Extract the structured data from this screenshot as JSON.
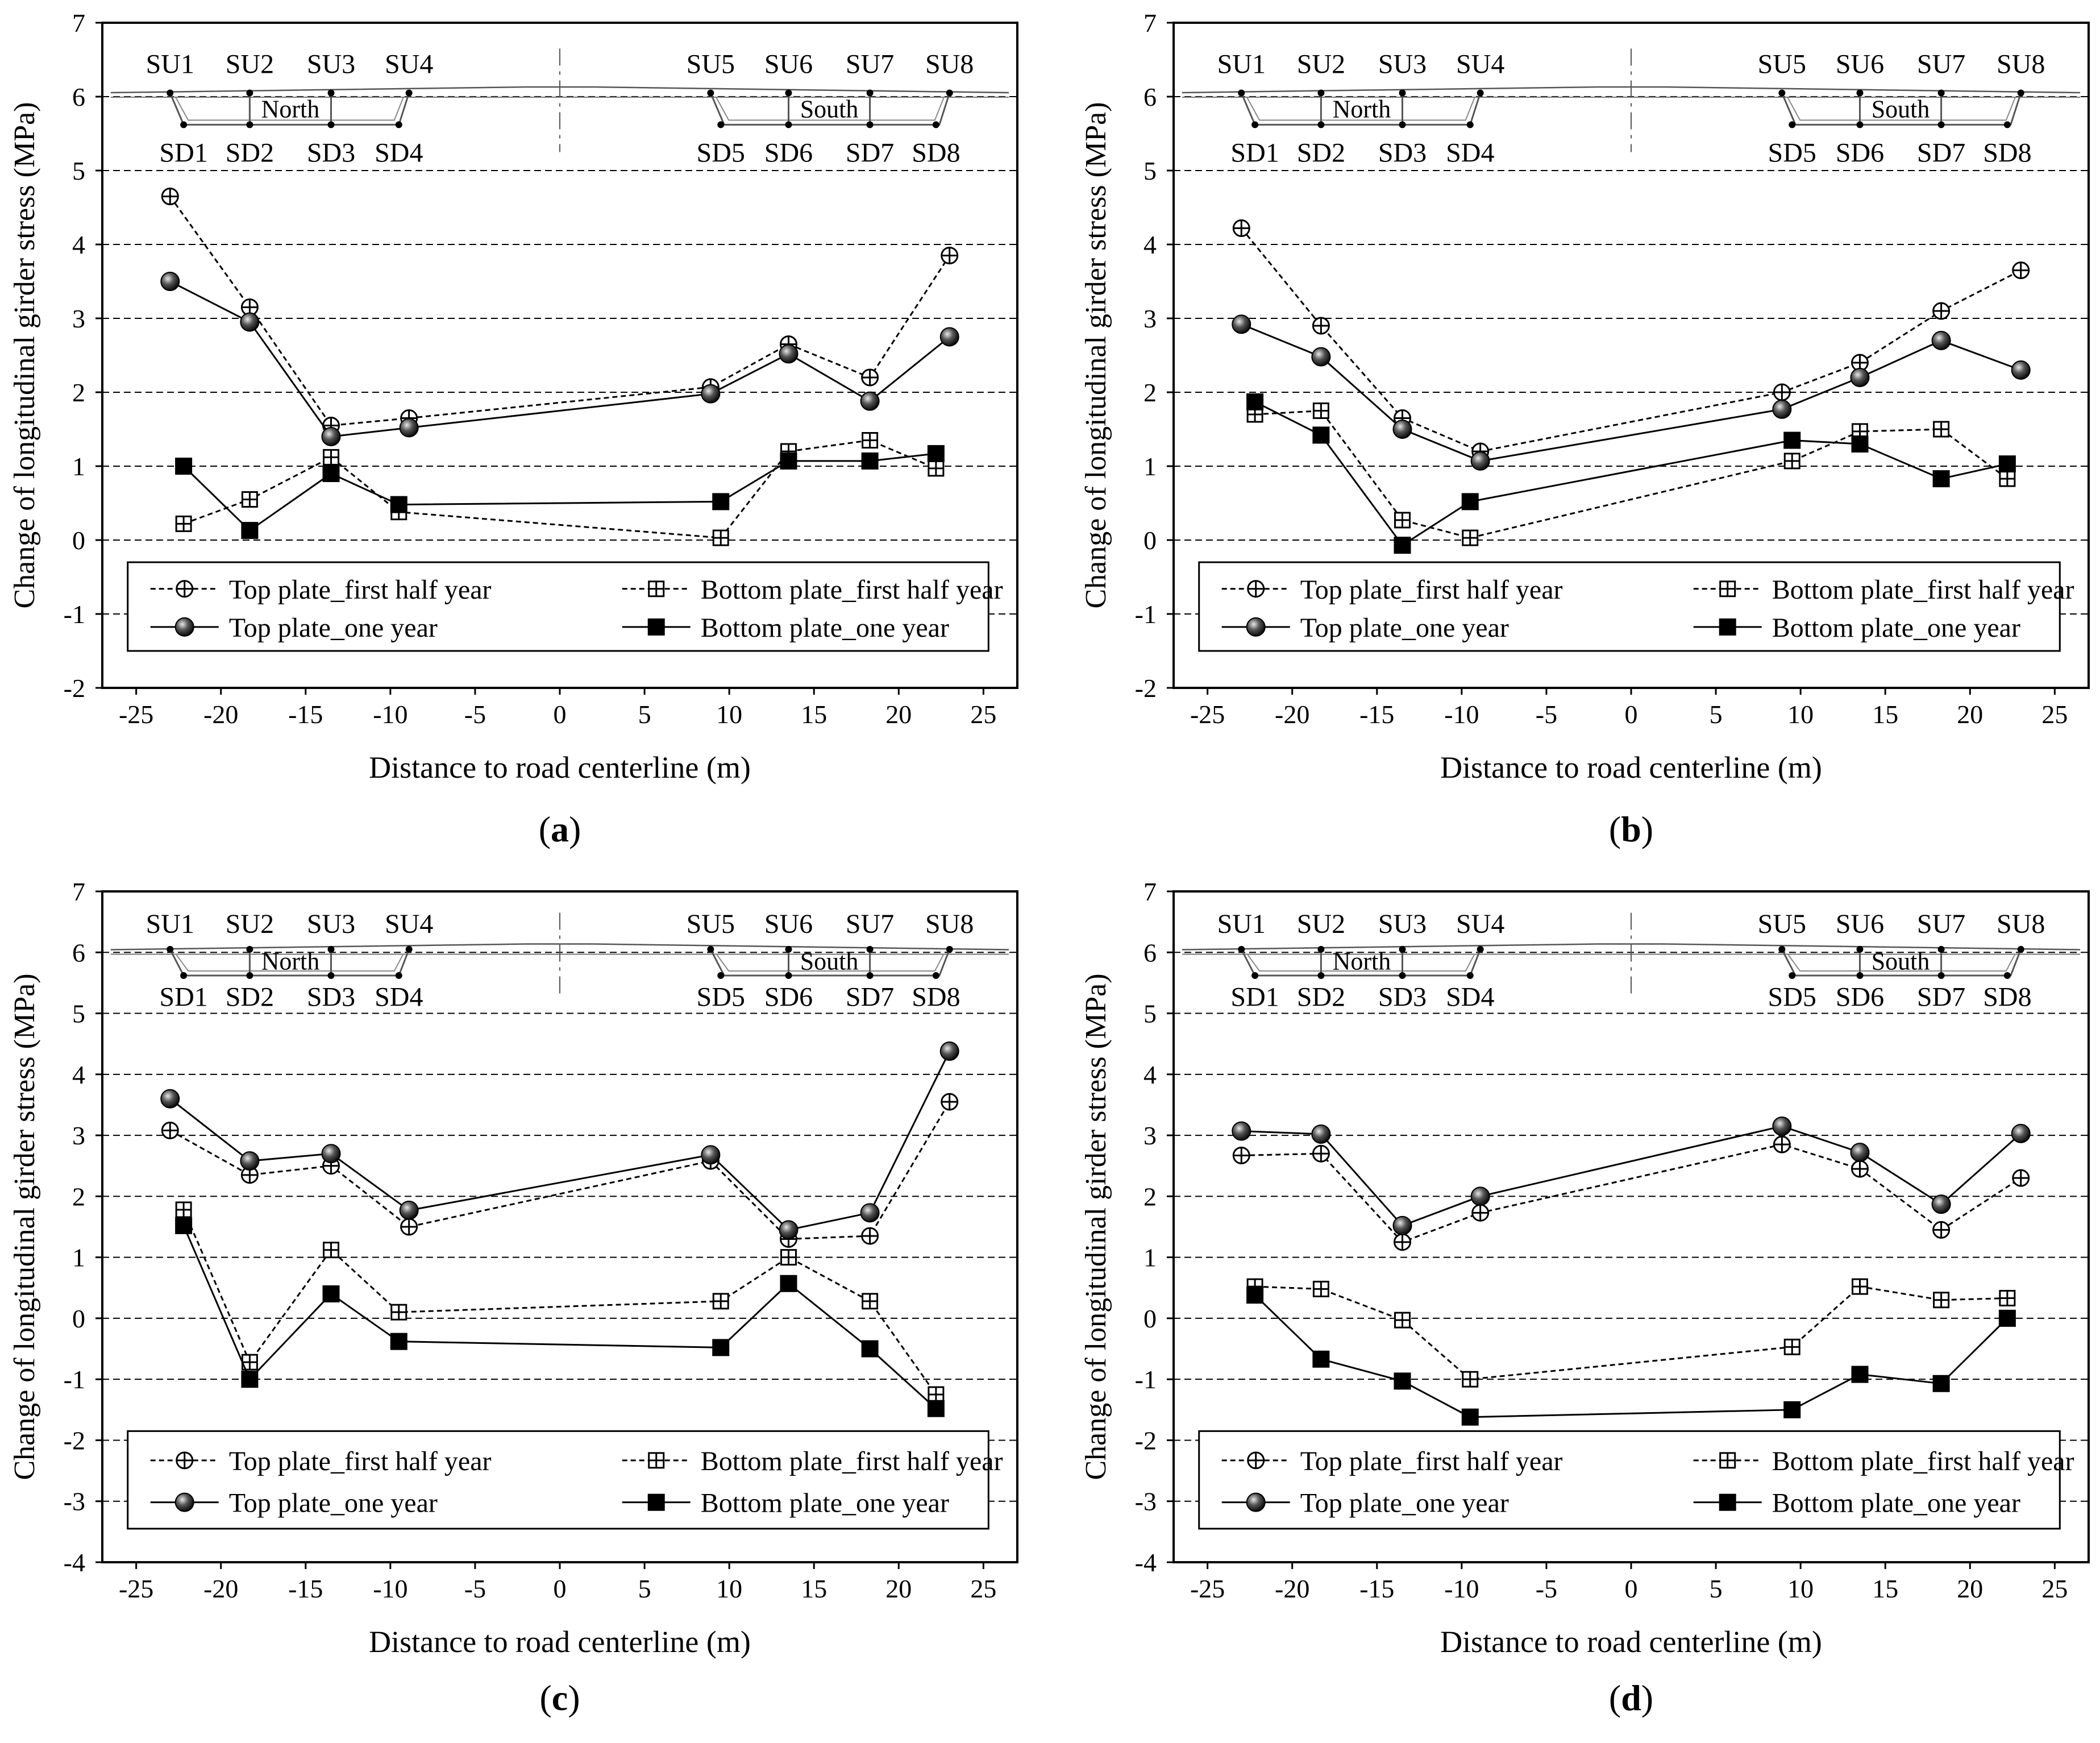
{
  "chart_data": [
    {
      "type": "line",
      "panel_label": "(a)",
      "xlabel": "Distance to road centerline (m)",
      "ylabel": "Change of longitudinal girder stress (MPa)",
      "xlim": [
        -27,
        27
      ],
      "ylim": [
        -2,
        7
      ],
      "xticks": [
        -25,
        -20,
        -15,
        -10,
        -5,
        0,
        5,
        10,
        15,
        20,
        25
      ],
      "yticks": [
        -2,
        -1,
        0,
        1,
        2,
        3,
        4,
        5,
        6,
        7
      ],
      "series": [
        {
          "name": "Top plate_first half year",
          "marker": "circle-cross",
          "style": "dashed",
          "x": [
            -23,
            -18.3,
            -13.5,
            -8.9,
            8.9,
            13.5,
            18.3,
            23
          ],
          "y": [
            4.65,
            3.15,
            1.55,
            1.65,
            2.07,
            2.65,
            2.2,
            3.85
          ]
        },
        {
          "name": "Bottom plate_first half year",
          "marker": "square-cross",
          "style": "dashed",
          "x": [
            -22.2,
            -18.3,
            -13.5,
            -9.5,
            9.5,
            13.5,
            18.3,
            22.2
          ],
          "y": [
            0.22,
            0.55,
            1.12,
            0.38,
            0.03,
            1.2,
            1.35,
            0.97
          ]
        },
        {
          "name": "Top plate_one year",
          "marker": "ball",
          "style": "solid",
          "x": [
            -23,
            -18.3,
            -13.5,
            -8.9,
            8.9,
            13.5,
            18.3,
            23
          ],
          "y": [
            3.5,
            2.95,
            1.4,
            1.52,
            1.98,
            2.52,
            1.88,
            2.75
          ]
        },
        {
          "name": "Bottom plate_one year",
          "marker": "filled-square",
          "style": "solid",
          "x": [
            -22.2,
            -18.3,
            -13.5,
            -9.5,
            9.5,
            13.5,
            18.3,
            22.2
          ],
          "y": [
            1.0,
            0.13,
            0.9,
            0.48,
            0.52,
            1.07,
            1.07,
            1.17
          ]
        }
      ]
    },
    {
      "type": "line",
      "panel_label": "(b)",
      "xlabel": "Distance to road centerline (m)",
      "ylabel": "Change of longitudinal girder stress (MPa)",
      "xlim": [
        -27,
        27
      ],
      "ylim": [
        -2,
        7
      ],
      "xticks": [
        -25,
        -20,
        -15,
        -10,
        -5,
        0,
        5,
        10,
        15,
        20,
        25
      ],
      "yticks": [
        -2,
        -1,
        0,
        1,
        2,
        3,
        4,
        5,
        6,
        7
      ],
      "series": [
        {
          "name": "Top plate_first half year",
          "marker": "circle-cross",
          "style": "dashed",
          "x": [
            -23,
            -18.3,
            -13.5,
            -8.9,
            8.9,
            13.5,
            18.3,
            23
          ],
          "y": [
            4.22,
            2.9,
            1.65,
            1.2,
            2.0,
            2.4,
            3.1,
            3.65
          ]
        },
        {
          "name": "Bottom plate_first half year",
          "marker": "square-cross",
          "style": "dashed",
          "x": [
            -22.2,
            -18.3,
            -13.5,
            -9.5,
            9.5,
            13.5,
            18.3,
            22.2
          ],
          "y": [
            1.7,
            1.75,
            0.27,
            0.03,
            1.07,
            1.47,
            1.5,
            0.83
          ]
        },
        {
          "name": "Top plate_one year",
          "marker": "ball",
          "style": "solid",
          "x": [
            -23,
            -18.3,
            -13.5,
            -8.9,
            8.9,
            13.5,
            18.3,
            23
          ],
          "y": [
            2.92,
            2.48,
            1.5,
            1.07,
            1.77,
            2.2,
            2.7,
            2.3
          ]
        },
        {
          "name": "Bottom plate_one year",
          "marker": "filled-square",
          "style": "solid",
          "x": [
            -22.2,
            -18.3,
            -13.5,
            -9.5,
            9.5,
            13.5,
            18.3,
            22.2
          ],
          "y": [
            1.87,
            1.42,
            -0.07,
            0.52,
            1.35,
            1.3,
            0.83,
            1.03
          ]
        }
      ]
    },
    {
      "type": "line",
      "panel_label": "(c)",
      "xlabel": "Distance to road centerline (m)",
      "ylabel": "Change of longitudinal girder stress (MPa)",
      "xlim": [
        -27,
        27
      ],
      "ylim": [
        -4,
        7
      ],
      "xticks": [
        -25,
        -20,
        -15,
        -10,
        -5,
        0,
        5,
        10,
        15,
        20,
        25
      ],
      "yticks": [
        -4,
        -3,
        -2,
        -1,
        0,
        1,
        2,
        3,
        4,
        5,
        6,
        7
      ],
      "series": [
        {
          "name": "Top plate_first half year",
          "marker": "circle-cross",
          "style": "dashed",
          "x": [
            -23,
            -18.3,
            -13.5,
            -8.9,
            8.9,
            13.5,
            18.3,
            23
          ],
          "y": [
            3.08,
            2.35,
            2.5,
            1.5,
            2.58,
            1.3,
            1.35,
            3.55
          ]
        },
        {
          "name": "Bottom plate_first half year",
          "marker": "square-cross",
          "style": "dashed",
          "x": [
            -22.2,
            -18.3,
            -13.5,
            -9.5,
            9.5,
            13.5,
            18.3,
            22.2
          ],
          "y": [
            1.78,
            -0.72,
            1.12,
            0.1,
            0.28,
            1.0,
            0.28,
            -1.25
          ]
        },
        {
          "name": "Top plate_one year",
          "marker": "ball",
          "style": "solid",
          "x": [
            -23,
            -18.3,
            -13.5,
            -8.9,
            8.9,
            13.5,
            18.3,
            23
          ],
          "y": [
            3.6,
            2.58,
            2.7,
            1.77,
            2.68,
            1.45,
            1.73,
            4.38
          ]
        },
        {
          "name": "Bottom plate_one year",
          "marker": "filled-square",
          "style": "solid",
          "x": [
            -22.2,
            -18.3,
            -13.5,
            -9.5,
            9.5,
            13.5,
            18.3,
            22.2
          ],
          "y": [
            1.52,
            -1.0,
            0.4,
            -0.38,
            -0.48,
            0.57,
            -0.5,
            -1.48
          ]
        }
      ]
    },
    {
      "type": "line",
      "panel_label": "(d)",
      "xlabel": "Distance to road centerline (m)",
      "ylabel": "Change of longitudinal girder stress (MPa)",
      "xlim": [
        -27,
        27
      ],
      "ylim": [
        -4,
        7
      ],
      "xticks": [
        -25,
        -20,
        -15,
        -10,
        -5,
        0,
        5,
        10,
        15,
        20,
        25
      ],
      "yticks": [
        -4,
        -3,
        -2,
        -1,
        0,
        1,
        2,
        3,
        4,
        5,
        6,
        7
      ],
      "series": [
        {
          "name": "Top plate_first half year",
          "marker": "circle-cross",
          "style": "dashed",
          "x": [
            -23,
            -18.3,
            -13.5,
            -8.9,
            8.9,
            13.5,
            18.3,
            23
          ],
          "y": [
            2.67,
            2.7,
            1.25,
            1.73,
            2.85,
            2.45,
            1.45,
            2.3
          ]
        },
        {
          "name": "Bottom plate_first half year",
          "marker": "square-cross",
          "style": "dashed",
          "x": [
            -22.2,
            -18.3,
            -13.5,
            -9.5,
            9.5,
            13.5,
            18.3,
            22.2
          ],
          "y": [
            0.52,
            0.48,
            -0.03,
            -1.0,
            -0.47,
            0.52,
            0.3,
            0.33
          ]
        },
        {
          "name": "Top plate_one year",
          "marker": "ball",
          "style": "solid",
          "x": [
            -23,
            -18.3,
            -13.5,
            -8.9,
            8.9,
            13.5,
            18.3,
            23
          ],
          "y": [
            3.07,
            3.02,
            1.52,
            2.0,
            3.15,
            2.72,
            1.87,
            3.03
          ]
        },
        {
          "name": "Bottom plate_one year",
          "marker": "filled-square",
          "style": "solid",
          "x": [
            -22.2,
            -18.3,
            -13.5,
            -9.5,
            9.5,
            13.5,
            18.3,
            22.2
          ],
          "y": [
            0.38,
            -0.67,
            -1.03,
            -1.62,
            -1.5,
            -0.92,
            -1.07,
            0.0
          ]
        }
      ]
    }
  ],
  "schematic": {
    "top_gauges": [
      "SU1",
      "SU2",
      "SU3",
      "SU4",
      "SU5",
      "SU6",
      "SU7",
      "SU8"
    ],
    "bottom_gauges": [
      "SD1",
      "SD2",
      "SD3",
      "SD4",
      "SD5",
      "SD6",
      "SD7",
      "SD8"
    ],
    "north_label": "North",
    "south_label": "South"
  }
}
